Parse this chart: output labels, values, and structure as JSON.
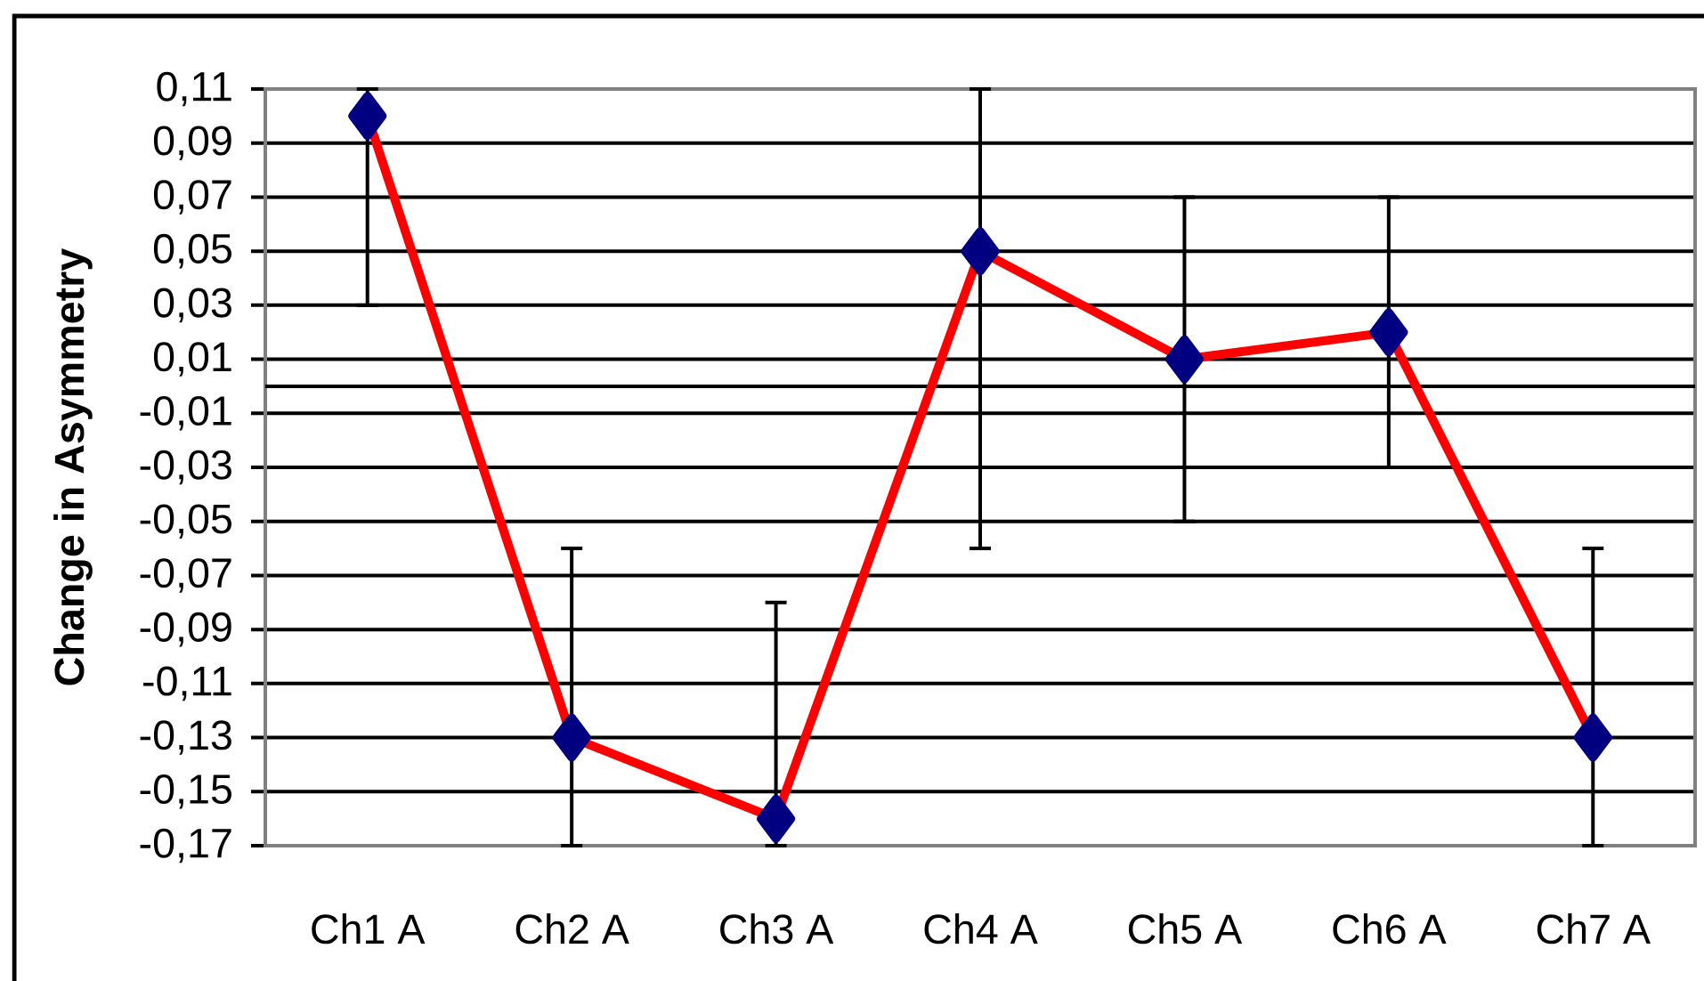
{
  "chart_data": {
    "type": "line",
    "ylabel": "Change in Asymmetry",
    "categories": [
      "Ch1 A",
      "Ch2 A",
      "Ch3 A",
      "Ch4 A",
      "Ch5 A",
      "Ch6 A",
      "Ch7 A"
    ],
    "series": [
      {
        "color": "#ff0000",
        "values": [
          0.1,
          -0.13,
          -0.16,
          0.05,
          0.01,
          0.02,
          -0.13
        ],
        "errors": [
          [
            0.03,
            0.11
          ],
          [
            -0.17,
            -0.06
          ],
          [
            -0.17,
            -0.08
          ],
          [
            -0.06,
            0.11
          ],
          [
            -0.05,
            0.07
          ],
          [
            -0.03,
            0.07
          ],
          [
            -0.17,
            -0.06
          ]
        ]
      }
    ],
    "ylim": [
      -0.17,
      0.11
    ],
    "yticks": [
      {
        "value": -0.17,
        "label": "-0,17"
      },
      {
        "value": -0.15,
        "label": "-0,15"
      },
      {
        "value": -0.13,
        "label": "-0,13"
      },
      {
        "value": -0.11,
        "label": "-0,11"
      },
      {
        "value": -0.09,
        "label": "-0,09"
      },
      {
        "value": -0.07,
        "label": "-0,07"
      },
      {
        "value": -0.05,
        "label": "-0,05"
      },
      {
        "value": -0.03,
        "label": "-0,03"
      },
      {
        "value": -0.01,
        "label": "-0,01"
      },
      {
        "value": 0.01,
        "label": "0,01"
      },
      {
        "value": 0.03,
        "label": "0,03"
      },
      {
        "value": 0.05,
        "label": "0,05"
      },
      {
        "value": 0.07,
        "label": "0,07"
      },
      {
        "value": 0.09,
        "label": "0,09"
      },
      {
        "value": 0.11,
        "label": "0,11"
      }
    ],
    "grid": "y",
    "marker": "diamond",
    "line_style": "solid"
  }
}
